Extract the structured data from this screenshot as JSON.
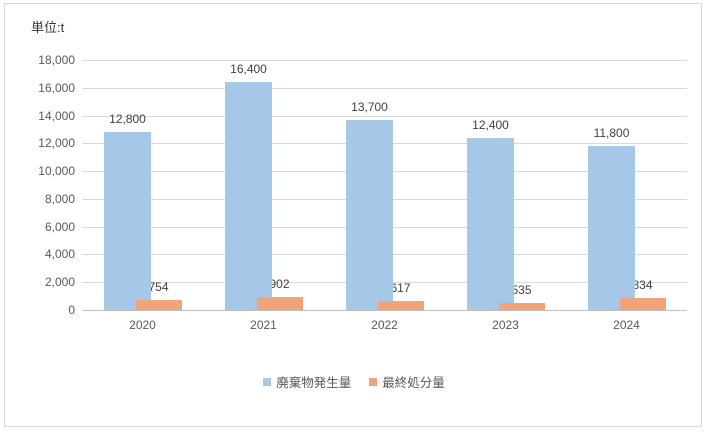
{
  "chart_data": {
    "type": "bar",
    "title": "",
    "unit": "単位:t",
    "categories": [
      "2020",
      "2021",
      "2022",
      "2023",
      "2024"
    ],
    "series": [
      {
        "name": "廃棄物発生量",
        "color": "#a5c8e9",
        "values": [
          12800,
          16400,
          13700,
          12400,
          11800
        ],
        "labels": [
          "12,800",
          "16,400",
          "13,700",
          "12,400",
          "11,800"
        ]
      },
      {
        "name": "最終処分量",
        "color": "#f1a479",
        "values": [
          754,
          902,
          617,
          535,
          834
        ],
        "labels": [
          "754",
          "902",
          "617",
          "535",
          "834"
        ]
      }
    ],
    "ylim": [
      0,
      18000
    ],
    "ytick_step": 2000,
    "ytick_labels": [
      "0",
      "2,000",
      "4,000",
      "6,000",
      "8,000",
      "10,000",
      "12,000",
      "14,000",
      "16,000",
      "18,000"
    ],
    "grid": true,
    "legend_position": "bottom",
    "style": {
      "gridline_color": "#d9d9d9",
      "axisline_color": "#bfbfbf",
      "border_color": "#d9d9d9",
      "axis_text_color": "#595959",
      "data_label_color": "#404040",
      "unit_text_color": "#333333"
    }
  }
}
